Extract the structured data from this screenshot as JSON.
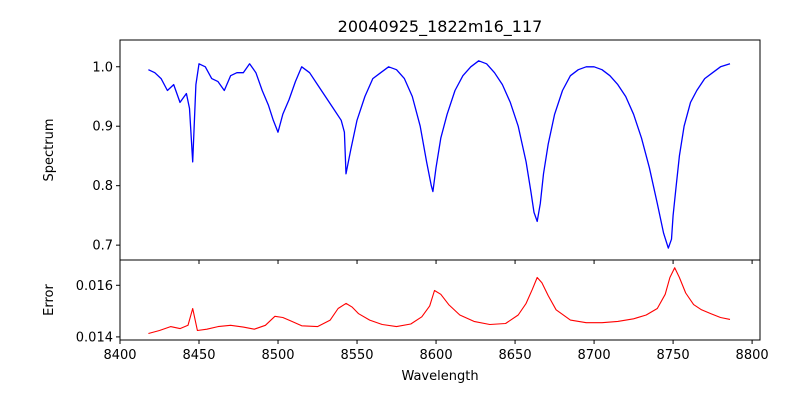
{
  "chart_data": {
    "title": "20040925_1822m16_117",
    "xlabel": "Wavelength",
    "xlim": [
      8400,
      8805
    ],
    "xticks": [
      8400,
      8450,
      8500,
      8550,
      8600,
      8650,
      8700,
      8750,
      8800
    ],
    "panels": [
      {
        "name": "spectrum",
        "type": "line",
        "ylabel": "Spectrum",
        "ylim": [
          0.675,
          1.045
        ],
        "yticks": [
          0.7,
          0.8,
          0.9,
          1.0
        ],
        "ytick_labels": [
          "0.7",
          "0.8",
          "0.9",
          "1.0"
        ],
        "series": [
          {
            "color": "#0000ff",
            "x": [
              8418,
              8422,
              8426,
              8430,
              8434,
              8438,
              8442,
              8444,
              8446,
              8448,
              8450,
              8454,
              8458,
              8462,
              8466,
              8470,
              8474,
              8478,
              8482,
              8486,
              8490,
              8494,
              8497,
              8500,
              8503,
              8507,
              8511,
              8515,
              8520,
              8525,
              8530,
              8535,
              8540,
              8542,
              8543,
              8546,
              8550,
              8555,
              8560,
              8565,
              8570,
              8575,
              8580,
              8585,
              8590,
              8594,
              8597,
              8598,
              8600,
              8603,
              8607,
              8612,
              8617,
              8622,
              8627,
              8632,
              8637,
              8642,
              8647,
              8652,
              8657,
              8660,
              8662,
              8664,
              8666,
              8668,
              8671,
              8675,
              8680,
              8685,
              8690,
              8695,
              8700,
              8705,
              8710,
              8715,
              8720,
              8725,
              8730,
              8735,
              8740,
              8744,
              8747,
              8749,
              8750,
              8752,
              8754,
              8757,
              8761,
              8765,
              8770,
              8775,
              8780,
              8786
            ],
            "y": [
              0.995,
              0.99,
              0.98,
              0.96,
              0.97,
              0.94,
              0.955,
              0.93,
              0.84,
              0.97,
              1.005,
              1.0,
              0.98,
              0.975,
              0.96,
              0.985,
              0.99,
              0.99,
              1.005,
              0.99,
              0.96,
              0.935,
              0.91,
              0.89,
              0.92,
              0.945,
              0.975,
              1.0,
              0.99,
              0.97,
              0.95,
              0.93,
              0.91,
              0.89,
              0.82,
              0.86,
              0.91,
              0.95,
              0.98,
              0.99,
              1.0,
              0.995,
              0.98,
              0.95,
              0.9,
              0.84,
              0.8,
              0.79,
              0.83,
              0.88,
              0.92,
              0.96,
              0.985,
              1.0,
              1.01,
              1.005,
              0.99,
              0.97,
              0.94,
              0.9,
              0.84,
              0.79,
              0.755,
              0.74,
              0.77,
              0.82,
              0.87,
              0.92,
              0.96,
              0.985,
              0.995,
              1.0,
              1.0,
              0.995,
              0.985,
              0.97,
              0.95,
              0.92,
              0.88,
              0.83,
              0.77,
              0.72,
              0.695,
              0.71,
              0.75,
              0.8,
              0.85,
              0.9,
              0.94,
              0.96,
              0.98,
              0.99,
              1.0,
              1.005
            ]
          }
        ]
      },
      {
        "name": "error",
        "type": "line",
        "ylabel": "Error",
        "ylim": [
          0.01388,
          0.01698
        ],
        "yticks": [
          0.014,
          0.016
        ],
        "ytick_labels": [
          "0.014",
          "0.016"
        ],
        "series": [
          {
            "color": "#ff0000",
            "x": [
              8418,
              8425,
              8432,
              8438,
              8443,
              8446,
              8449,
              8455,
              8462,
              8470,
              8478,
              8485,
              8492,
              8498,
              8503,
              8508,
              8515,
              8525,
              8533,
              8538,
              8543,
              8547,
              8551,
              8558,
              8566,
              8575,
              8584,
              8591,
              8596,
              8599,
              8603,
              8608,
              8615,
              8624,
              8634,
              8644,
              8652,
              8657,
              8661,
              8664,
              8667,
              8671,
              8676,
              8685,
              8695,
              8705,
              8715,
              8725,
              8733,
              8740,
              8745,
              8748,
              8751,
              8754,
              8758,
              8763,
              8768,
              8774,
              8780,
              8786
            ],
            "y": [
              0.01413,
              0.01425,
              0.0144,
              0.01432,
              0.01445,
              0.0151,
              0.01425,
              0.0143,
              0.0144,
              0.01445,
              0.01438,
              0.0143,
              0.01445,
              0.0148,
              0.01475,
              0.01462,
              0.01443,
              0.0144,
              0.01465,
              0.0151,
              0.0153,
              0.01515,
              0.0149,
              0.01465,
              0.01448,
              0.0144,
              0.0145,
              0.01478,
              0.0152,
              0.0158,
              0.01565,
              0.01525,
              0.01485,
              0.0146,
              0.01448,
              0.01452,
              0.01485,
              0.0153,
              0.01585,
              0.0163,
              0.0161,
              0.0156,
              0.01505,
              0.01465,
              0.01455,
              0.01455,
              0.0146,
              0.0147,
              0.01485,
              0.0151,
              0.01565,
              0.0163,
              0.01668,
              0.0163,
              0.0157,
              0.01525,
              0.01505,
              0.0149,
              0.01475,
              0.01468
            ]
          }
        ]
      }
    ]
  }
}
